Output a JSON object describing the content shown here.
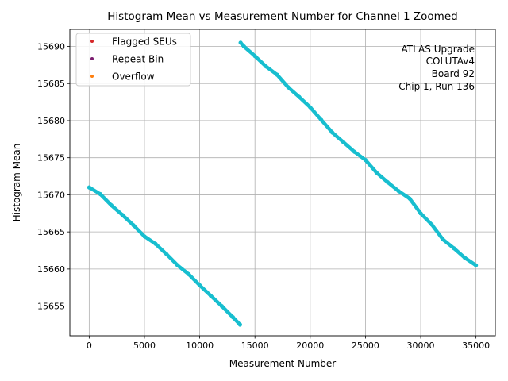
{
  "chart_data": {
    "type": "scatter",
    "title": "Histogram Mean vs Measurement Number for Channel 1 Zoomed",
    "xlabel": "Measurement Number",
    "ylabel": "Histogram Mean",
    "xlim": [
      -1750,
      36750
    ],
    "ylim": [
      15651,
      15692.3
    ],
    "xticks": [
      0,
      5000,
      10000,
      15000,
      20000,
      25000,
      30000,
      35000
    ],
    "yticks": [
      15655,
      15660,
      15665,
      15670,
      15675,
      15680,
      15685,
      15690
    ],
    "grid": true,
    "legend": {
      "position": "top-left",
      "entries": [
        {
          "label": "Flagged SEUs",
          "color": "#d62728"
        },
        {
          "label": "Repeat Bin",
          "color": "#7b1d6f"
        },
        {
          "label": "Overflow",
          "color": "#ff7f0e"
        }
      ]
    },
    "annotation": [
      "ATLAS Upgrade",
      "COLUTAv4",
      "Board 92",
      "Chip 1, Run 136"
    ],
    "series": [
      {
        "color": "#17becf",
        "x": [
          0,
          1000,
          2000,
          3000,
          4000,
          5000,
          6000,
          7000,
          8000,
          9000,
          10000,
          11000,
          12000,
          13000,
          13650
        ],
        "y": [
          15671.0,
          15670.1,
          15668.6,
          15667.3,
          15665.9,
          15664.4,
          15663.4,
          15662.0,
          15660.5,
          15659.3,
          15657.8,
          15656.4,
          15655.0,
          15653.5,
          15652.5
        ]
      },
      {
        "color": "#17becf",
        "x": [
          13700,
          14000,
          15000,
          16000,
          17000,
          18000,
          19000,
          20000,
          21000,
          22000,
          23000,
          24000,
          25000,
          26000,
          27000,
          28000,
          29000,
          30000,
          31000,
          32000,
          33000,
          34000,
          35000
        ],
        "y": [
          15690.5,
          15690.0,
          15688.7,
          15687.3,
          15686.2,
          15684.5,
          15683.2,
          15681.8,
          15680.1,
          15678.4,
          15677.1,
          15675.8,
          15674.7,
          15673.0,
          15671.7,
          15670.5,
          15669.5,
          15667.5,
          15666.0,
          15664.0,
          15662.8,
          15661.5,
          15660.5
        ]
      }
    ]
  }
}
